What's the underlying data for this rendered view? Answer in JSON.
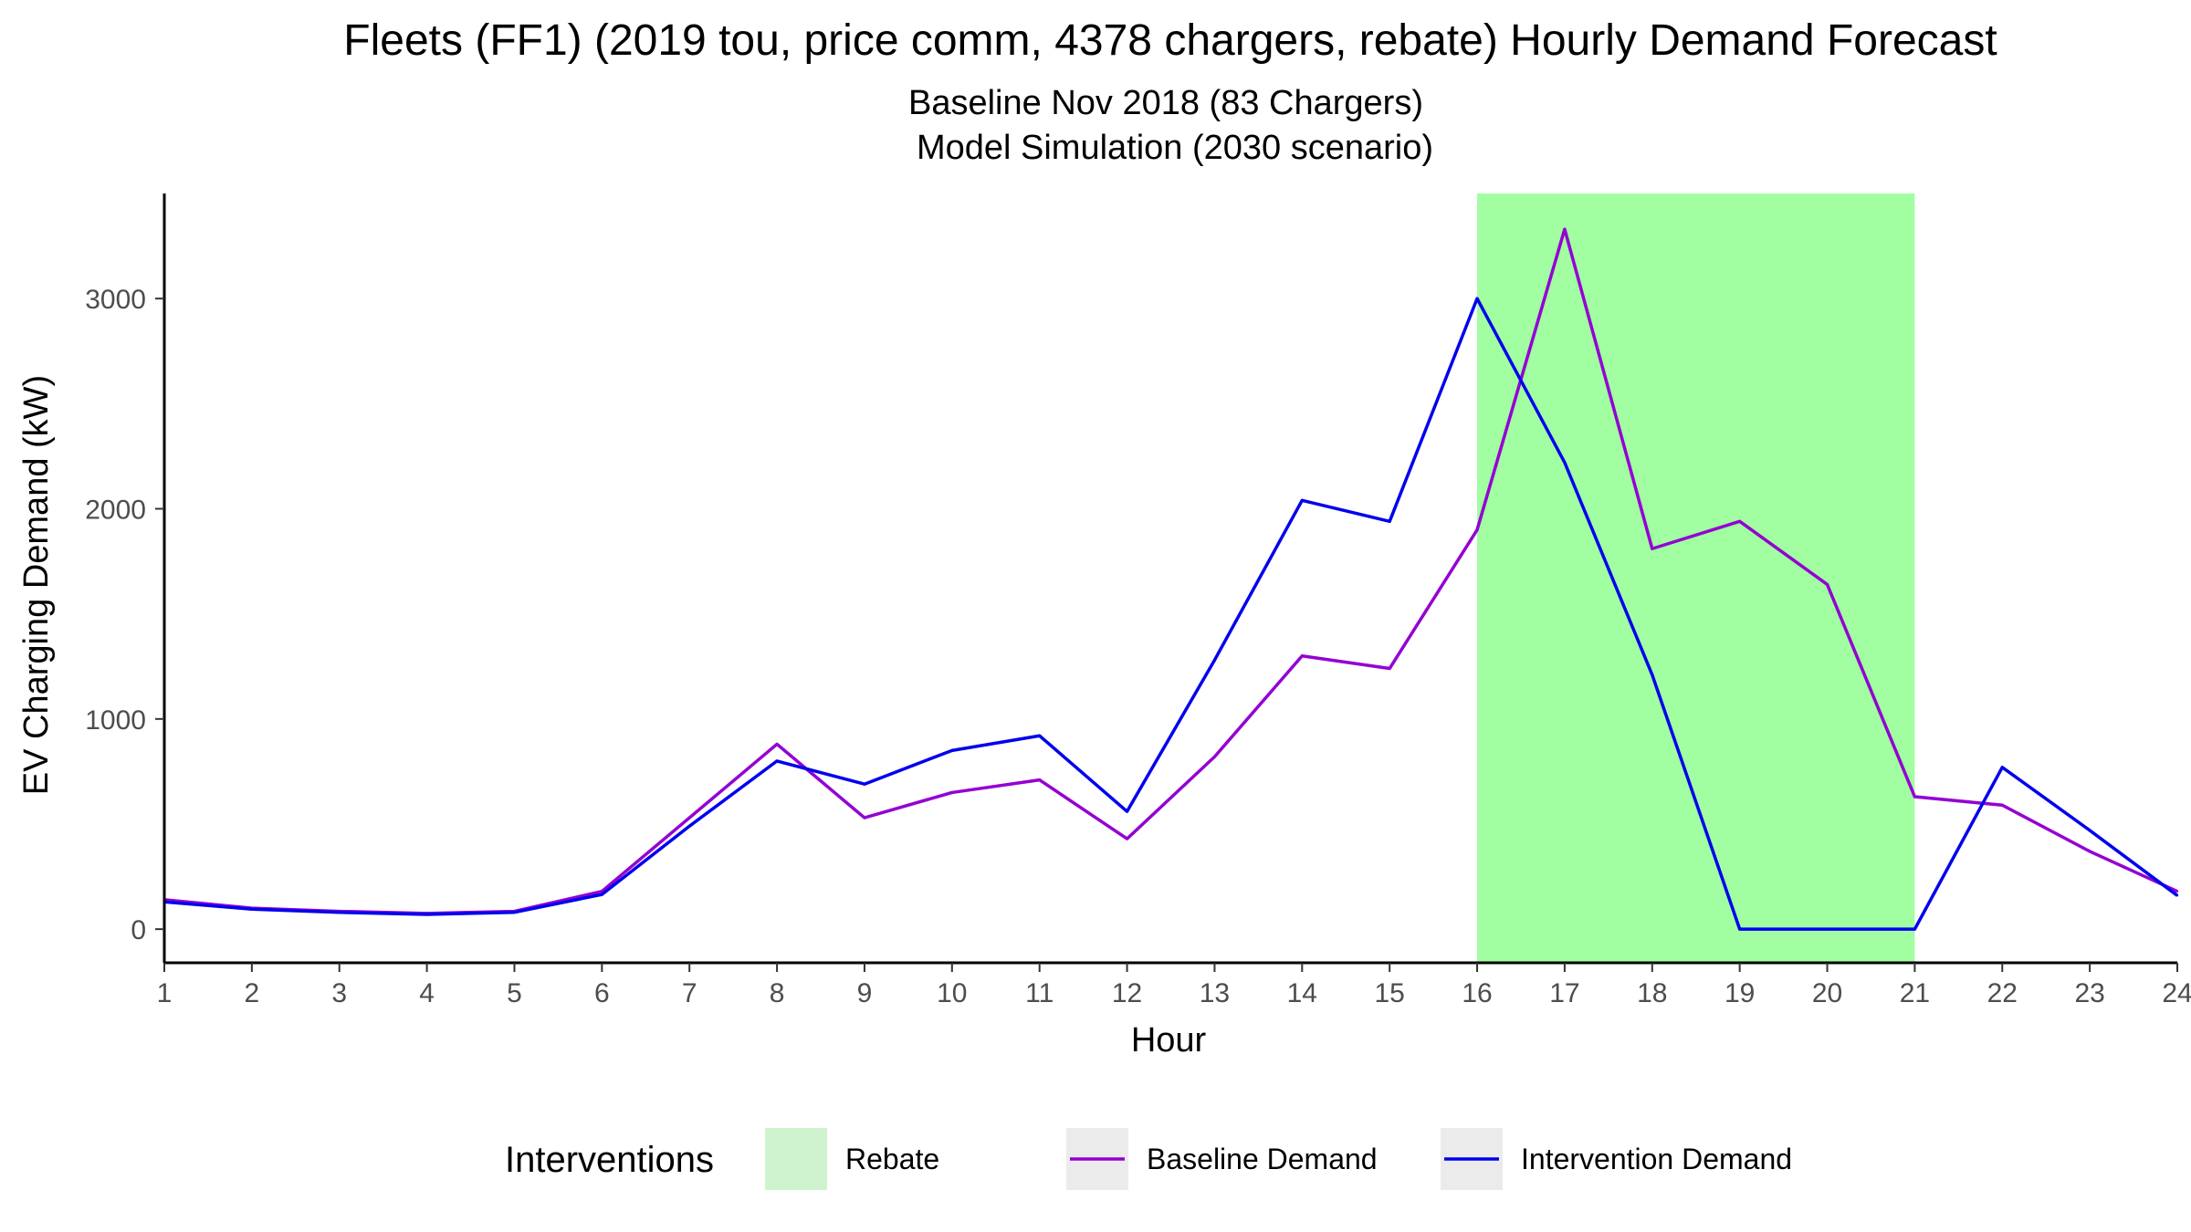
{
  "chart_data": {
    "type": "line",
    "title": "Fleets (FF1) (2019 tou, price comm, 4378 chargers, rebate) Hourly Demand Forecast",
    "subtitle_line1": "Baseline Nov 2018 (83 Chargers)",
    "subtitle_line2": "Model Simulation (2030 scenario)",
    "xlabel": "Hour",
    "ylabel": "EV Charging Demand (kW)",
    "x": [
      1,
      2,
      3,
      4,
      5,
      6,
      7,
      8,
      9,
      10,
      11,
      12,
      13,
      14,
      15,
      16,
      17,
      18,
      19,
      20,
      21,
      22,
      23,
      24
    ],
    "xlim": [
      1,
      24
    ],
    "ylim": [
      -160,
      3500
    ],
    "x_ticks": [
      1,
      2,
      3,
      4,
      5,
      6,
      7,
      8,
      9,
      10,
      11,
      12,
      13,
      14,
      15,
      16,
      17,
      18,
      19,
      20,
      21,
      22,
      23,
      24
    ],
    "y_ticks": [
      0,
      1000,
      2000,
      3000
    ],
    "grid": false,
    "legend_position": "bottom",
    "series": [
      {
        "name": "Baseline Demand",
        "color": "#9400D3",
        "values": [
          140,
          100,
          85,
          75,
          85,
          180,
          530,
          880,
          530,
          650,
          710,
          430,
          820,
          1300,
          1240,
          1900,
          3330,
          1810,
          1940,
          1640,
          630,
          590,
          370,
          180
        ]
      },
      {
        "name": "Intervention Demand",
        "color": "#0000EE",
        "values": [
          130,
          95,
          80,
          70,
          80,
          165,
          490,
          800,
          690,
          850,
          920,
          560,
          1280,
          2040,
          1940,
          3000,
          2220,
          1210,
          0,
          0,
          0,
          770,
          470,
          160
        ]
      }
    ],
    "shaded_regions": [
      {
        "name": "Rebate",
        "x_start": 16,
        "x_end": 21,
        "color": "#A1FFA1"
      }
    ],
    "legend": {
      "title": "Interventions",
      "items": [
        {
          "label": "Rebate",
          "kind": "fill",
          "color": "#CFF2CF"
        },
        {
          "label": "Baseline Demand",
          "kind": "line",
          "color": "#9400D3"
        },
        {
          "label": "Intervention Demand",
          "kind": "line",
          "color": "#0000EE"
        }
      ]
    }
  }
}
